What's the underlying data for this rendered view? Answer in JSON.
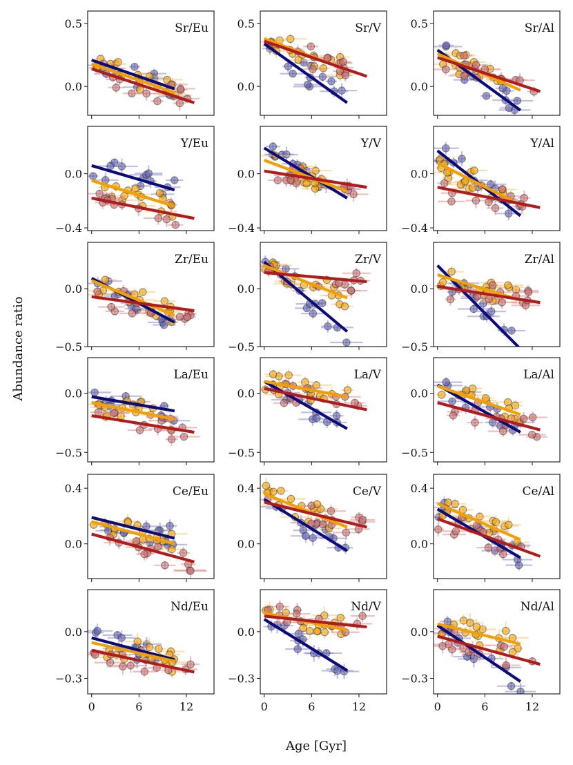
{
  "figure": {
    "xlabel": "Age [Gyr]",
    "ylabel": "Abundance ratio",
    "xticks": [
      0,
      6,
      12
    ],
    "xlim": [
      -0.5,
      15.5
    ]
  },
  "colors": {
    "navy": "#0b0b7a",
    "orange": "#f2a000",
    "red": "#b01c1c",
    "orange_edge": "#8a5a00",
    "navy_fill": "#5a5aa8",
    "red_fill": "#c46a6a",
    "err_navy": "#8a8ad0",
    "err_orange": "#f6c770",
    "err_red": "#e08a8a"
  },
  "chart_data": [
    {
      "type": "scatter",
      "label": "Sr/Eu",
      "ylim": [
        -0.23,
        0.6
      ],
      "yticks": [
        0.5,
        0.0
      ],
      "ytick_labels": [
        "0.5",
        "0.0"
      ],
      "fits": [
        {
          "series": "navy",
          "x": [
            0,
            10.5
          ],
          "y": [
            0.21,
            -0.02
          ]
        },
        {
          "series": "orange",
          "x": [
            0,
            10.5
          ],
          "y": [
            0.18,
            -0.05
          ]
        },
        {
          "series": "red",
          "x": [
            0,
            13
          ],
          "y": [
            0.14,
            -0.13
          ]
        }
      ]
    },
    {
      "type": "scatter",
      "label": "Sr/V",
      "ylim": [
        -0.23,
        0.6
      ],
      "yticks": [
        0.5,
        0.0
      ],
      "ytick_labels": [
        "0.5",
        "0.0"
      ],
      "fits": [
        {
          "series": "navy",
          "x": [
            0,
            10.5
          ],
          "y": [
            0.34,
            -0.13
          ]
        },
        {
          "series": "orange",
          "x": [
            0,
            10.5
          ],
          "y": [
            0.38,
            0.13
          ]
        },
        {
          "series": "red",
          "x": [
            0,
            13
          ],
          "y": [
            0.36,
            0.08
          ]
        }
      ]
    },
    {
      "type": "scatter",
      "label": "Sr/Al",
      "ylim": [
        -0.23,
        0.6
      ],
      "yticks": [
        0.5,
        0.0
      ],
      "ytick_labels": [
        "0.5",
        "0.0"
      ],
      "fits": [
        {
          "series": "navy",
          "x": [
            0,
            10.5
          ],
          "y": [
            0.29,
            -0.19
          ]
        },
        {
          "series": "orange",
          "x": [
            0,
            10.5
          ],
          "y": [
            0.26,
            -0.03
          ]
        },
        {
          "series": "red",
          "x": [
            0,
            13
          ],
          "y": [
            0.23,
            -0.04
          ]
        }
      ]
    },
    {
      "type": "scatter",
      "label": "Y/Eu",
      "ylim": [
        -0.42,
        0.35
      ],
      "yticks": [
        0.0,
        -0.4
      ],
      "ytick_labels": [
        "0.0",
        "−0.4"
      ],
      "fits": [
        {
          "series": "navy",
          "x": [
            0,
            10.5
          ],
          "y": [
            0.06,
            -0.12
          ]
        },
        {
          "series": "orange",
          "x": [
            0,
            10.5
          ],
          "y": [
            -0.05,
            -0.24
          ]
        },
        {
          "series": "red",
          "x": [
            0,
            13
          ],
          "y": [
            -0.18,
            -0.33
          ]
        }
      ]
    },
    {
      "type": "scatter",
      "label": "Y/V",
      "ylim": [
        -0.42,
        0.35
      ],
      "yticks": [
        0.0,
        -0.4
      ],
      "ytick_labels": [
        "0.0",
        "−0.4"
      ],
      "fits": [
        {
          "series": "navy",
          "x": [
            0,
            10.5
          ],
          "y": [
            0.19,
            -0.18
          ]
        },
        {
          "series": "orange",
          "x": [
            0,
            10.5
          ],
          "y": [
            0.1,
            -0.13
          ]
        },
        {
          "series": "red",
          "x": [
            0,
            13
          ],
          "y": [
            0.02,
            -0.1
          ]
        }
      ]
    },
    {
      "type": "scatter",
      "label": "Y/Al",
      "ylim": [
        -0.42,
        0.35
      ],
      "yticks": [
        0.0,
        -0.4
      ],
      "ytick_labels": [
        "0.0",
        "−0.4"
      ],
      "fits": [
        {
          "series": "navy",
          "x": [
            0,
            10.5
          ],
          "y": [
            0.17,
            -0.31
          ]
        },
        {
          "series": "orange",
          "x": [
            0,
            10.5
          ],
          "y": [
            0.08,
            -0.23
          ]
        },
        {
          "series": "red",
          "x": [
            0,
            13
          ],
          "y": [
            -0.1,
            -0.25
          ]
        }
      ]
    },
    {
      "type": "scatter",
      "label": "Zr/Eu",
      "ylim": [
        -0.5,
        0.4
      ],
      "yticks": [
        0.0,
        -0.5
      ],
      "ytick_labels": [
        "0.0",
        "−0.5"
      ],
      "fits": [
        {
          "series": "navy",
          "x": [
            0,
            10.5
          ],
          "y": [
            0.09,
            -0.29
          ]
        },
        {
          "series": "orange",
          "x": [
            0,
            10.5
          ],
          "y": [
            0.07,
            -0.23
          ]
        },
        {
          "series": "red",
          "x": [
            0,
            13
          ],
          "y": [
            -0.07,
            -0.19
          ]
        }
      ]
    },
    {
      "type": "scatter",
      "label": "Zr/V",
      "ylim": [
        -0.5,
        0.4
      ],
      "yticks": [
        0.0,
        -0.5
      ],
      "ytick_labels": [
        "0.0",
        "−0.5"
      ],
      "fits": [
        {
          "series": "navy",
          "x": [
            0,
            10.5
          ],
          "y": [
            0.23,
            -0.37
          ]
        },
        {
          "series": "orange",
          "x": [
            0,
            10.5
          ],
          "y": [
            0.2,
            -0.08
          ]
        },
        {
          "series": "red",
          "x": [
            0,
            13
          ],
          "y": [
            0.14,
            0.06
          ]
        }
      ]
    },
    {
      "type": "scatter",
      "label": "Zr/Al",
      "ylim": [
        -0.5,
        0.4
      ],
      "yticks": [
        0.0,
        -0.5
      ],
      "ytick_labels": [
        "0.0",
        "−0.5"
      ],
      "fits": [
        {
          "series": "navy",
          "x": [
            0,
            10.5
          ],
          "y": [
            0.2,
            -0.52
          ]
        },
        {
          "series": "orange",
          "x": [
            0,
            10.5
          ],
          "y": [
            0.12,
            -0.1
          ]
        },
        {
          "series": "red",
          "x": [
            0,
            13
          ],
          "y": [
            0.02,
            -0.12
          ]
        }
      ]
    },
    {
      "type": "scatter",
      "label": "La/Eu",
      "ylim": [
        -0.58,
        0.3
      ],
      "yticks": [
        0.0,
        -0.5
      ],
      "ytick_labels": [
        "0.0",
        "−0.5"
      ],
      "fits": [
        {
          "series": "navy",
          "x": [
            0,
            10.5
          ],
          "y": [
            -0.03,
            -0.15
          ]
        },
        {
          "series": "orange",
          "x": [
            0,
            10.5
          ],
          "y": [
            -0.08,
            -0.22
          ]
        },
        {
          "series": "red",
          "x": [
            0,
            13
          ],
          "y": [
            -0.19,
            -0.33
          ]
        }
      ]
    },
    {
      "type": "scatter",
      "label": "La/V",
      "ylim": [
        -0.58,
        0.3
      ],
      "yticks": [
        0.0,
        -0.5
      ],
      "ytick_labels": [
        "0.0",
        "−0.5"
      ],
      "fits": [
        {
          "series": "navy",
          "x": [
            0,
            10.5
          ],
          "y": [
            0.1,
            -0.3
          ]
        },
        {
          "series": "orange",
          "x": [
            0,
            10.5
          ],
          "y": [
            0.1,
            -0.03
          ]
        },
        {
          "series": "red",
          "x": [
            0,
            13
          ],
          "y": [
            0.04,
            -0.14
          ]
        }
      ]
    },
    {
      "type": "scatter",
      "label": "La/Al",
      "ylim": [
        -0.58,
        0.3
      ],
      "yticks": [
        0.0,
        -0.5
      ],
      "ytick_labels": [
        "0.0",
        "−0.5"
      ],
      "fits": [
        {
          "series": "navy",
          "x": [
            0,
            10.5
          ],
          "y": [
            0.07,
            -0.33
          ]
        },
        {
          "series": "orange",
          "x": [
            0,
            10.5
          ],
          "y": [
            0.06,
            -0.18
          ]
        },
        {
          "series": "red",
          "x": [
            0,
            13
          ],
          "y": [
            -0.08,
            -0.31
          ]
        }
      ]
    },
    {
      "type": "scatter",
      "label": "Ce/Eu",
      "ylim": [
        -0.25,
        0.5
      ],
      "yticks": [
        0.4,
        0.0
      ],
      "ytick_labels": [
        "0.4",
        "0.0"
      ],
      "fits": [
        {
          "series": "navy",
          "x": [
            0,
            10.5
          ],
          "y": [
            0.19,
            0.04
          ]
        },
        {
          "series": "orange",
          "x": [
            0,
            10.5
          ],
          "y": [
            0.16,
            0.0
          ]
        },
        {
          "series": "red",
          "x": [
            0,
            13
          ],
          "y": [
            0.07,
            -0.13
          ]
        }
      ]
    },
    {
      "type": "scatter",
      "label": "Ce/V",
      "ylim": [
        -0.25,
        0.5
      ],
      "yticks": [
        0.4,
        0.0
      ],
      "ytick_labels": [
        "0.4",
        "0.0"
      ],
      "fits": [
        {
          "series": "navy",
          "x": [
            0,
            10.5
          ],
          "y": [
            0.32,
            -0.05
          ]
        },
        {
          "series": "orange",
          "x": [
            0,
            10.5
          ],
          "y": [
            0.36,
            0.12
          ]
        },
        {
          "series": "red",
          "x": [
            0,
            13
          ],
          "y": [
            0.3,
            0.12
          ]
        }
      ]
    },
    {
      "type": "scatter",
      "label": "Ce/Al",
      "ylim": [
        -0.25,
        0.5
      ],
      "yticks": [
        0.4,
        0.0
      ],
      "ytick_labels": [
        "0.4",
        "0.0"
      ],
      "fits": [
        {
          "series": "navy",
          "x": [
            0,
            10.5
          ],
          "y": [
            0.25,
            -0.1
          ]
        },
        {
          "series": "orange",
          "x": [
            0,
            10.5
          ],
          "y": [
            0.29,
            0.03
          ]
        },
        {
          "series": "red",
          "x": [
            0,
            13
          ],
          "y": [
            0.18,
            -0.09
          ]
        }
      ]
    },
    {
      "type": "scatter",
      "label": "Nd/Eu",
      "ylim": [
        -0.4,
        0.27
      ],
      "yticks": [
        0.0,
        -0.3
      ],
      "ytick_labels": [
        "0.0",
        "−0.3"
      ],
      "fits": [
        {
          "series": "navy",
          "x": [
            0,
            10.5
          ],
          "y": [
            -0.04,
            -0.18
          ]
        },
        {
          "series": "orange",
          "x": [
            0,
            10.5
          ],
          "y": [
            -0.07,
            -0.19
          ]
        },
        {
          "series": "red",
          "x": [
            0,
            13
          ],
          "y": [
            -0.12,
            -0.26
          ]
        }
      ]
    },
    {
      "type": "scatter",
      "label": "Nd/V",
      "ylim": [
        -0.4,
        0.27
      ],
      "yticks": [
        0.0,
        -0.3
      ],
      "ytick_labels": [
        "0.0",
        "−0.3"
      ],
      "fits": [
        {
          "series": "navy",
          "x": [
            0,
            10.5
          ],
          "y": [
            0.08,
            -0.25
          ]
        },
        {
          "series": "orange",
          "x": [
            0,
            10.5
          ],
          "y": [
            0.12,
            0.01
          ]
        },
        {
          "series": "red",
          "x": [
            0,
            13
          ],
          "y": [
            0.1,
            0.03
          ]
        }
      ]
    },
    {
      "type": "scatter",
      "label": "Nd/Al",
      "ylim": [
        -0.4,
        0.27
      ],
      "yticks": [
        0.0,
        -0.3
      ],
      "ytick_labels": [
        "0.0",
        "−0.3"
      ],
      "fits": [
        {
          "series": "navy",
          "x": [
            0,
            10.5
          ],
          "y": [
            0.04,
            -0.32
          ]
        },
        {
          "series": "orange",
          "x": [
            0,
            10.5
          ],
          "y": [
            0.05,
            -0.08
          ]
        },
        {
          "series": "red",
          "x": [
            0,
            13
          ],
          "y": [
            -0.03,
            -0.21
          ]
        }
      ]
    }
  ]
}
